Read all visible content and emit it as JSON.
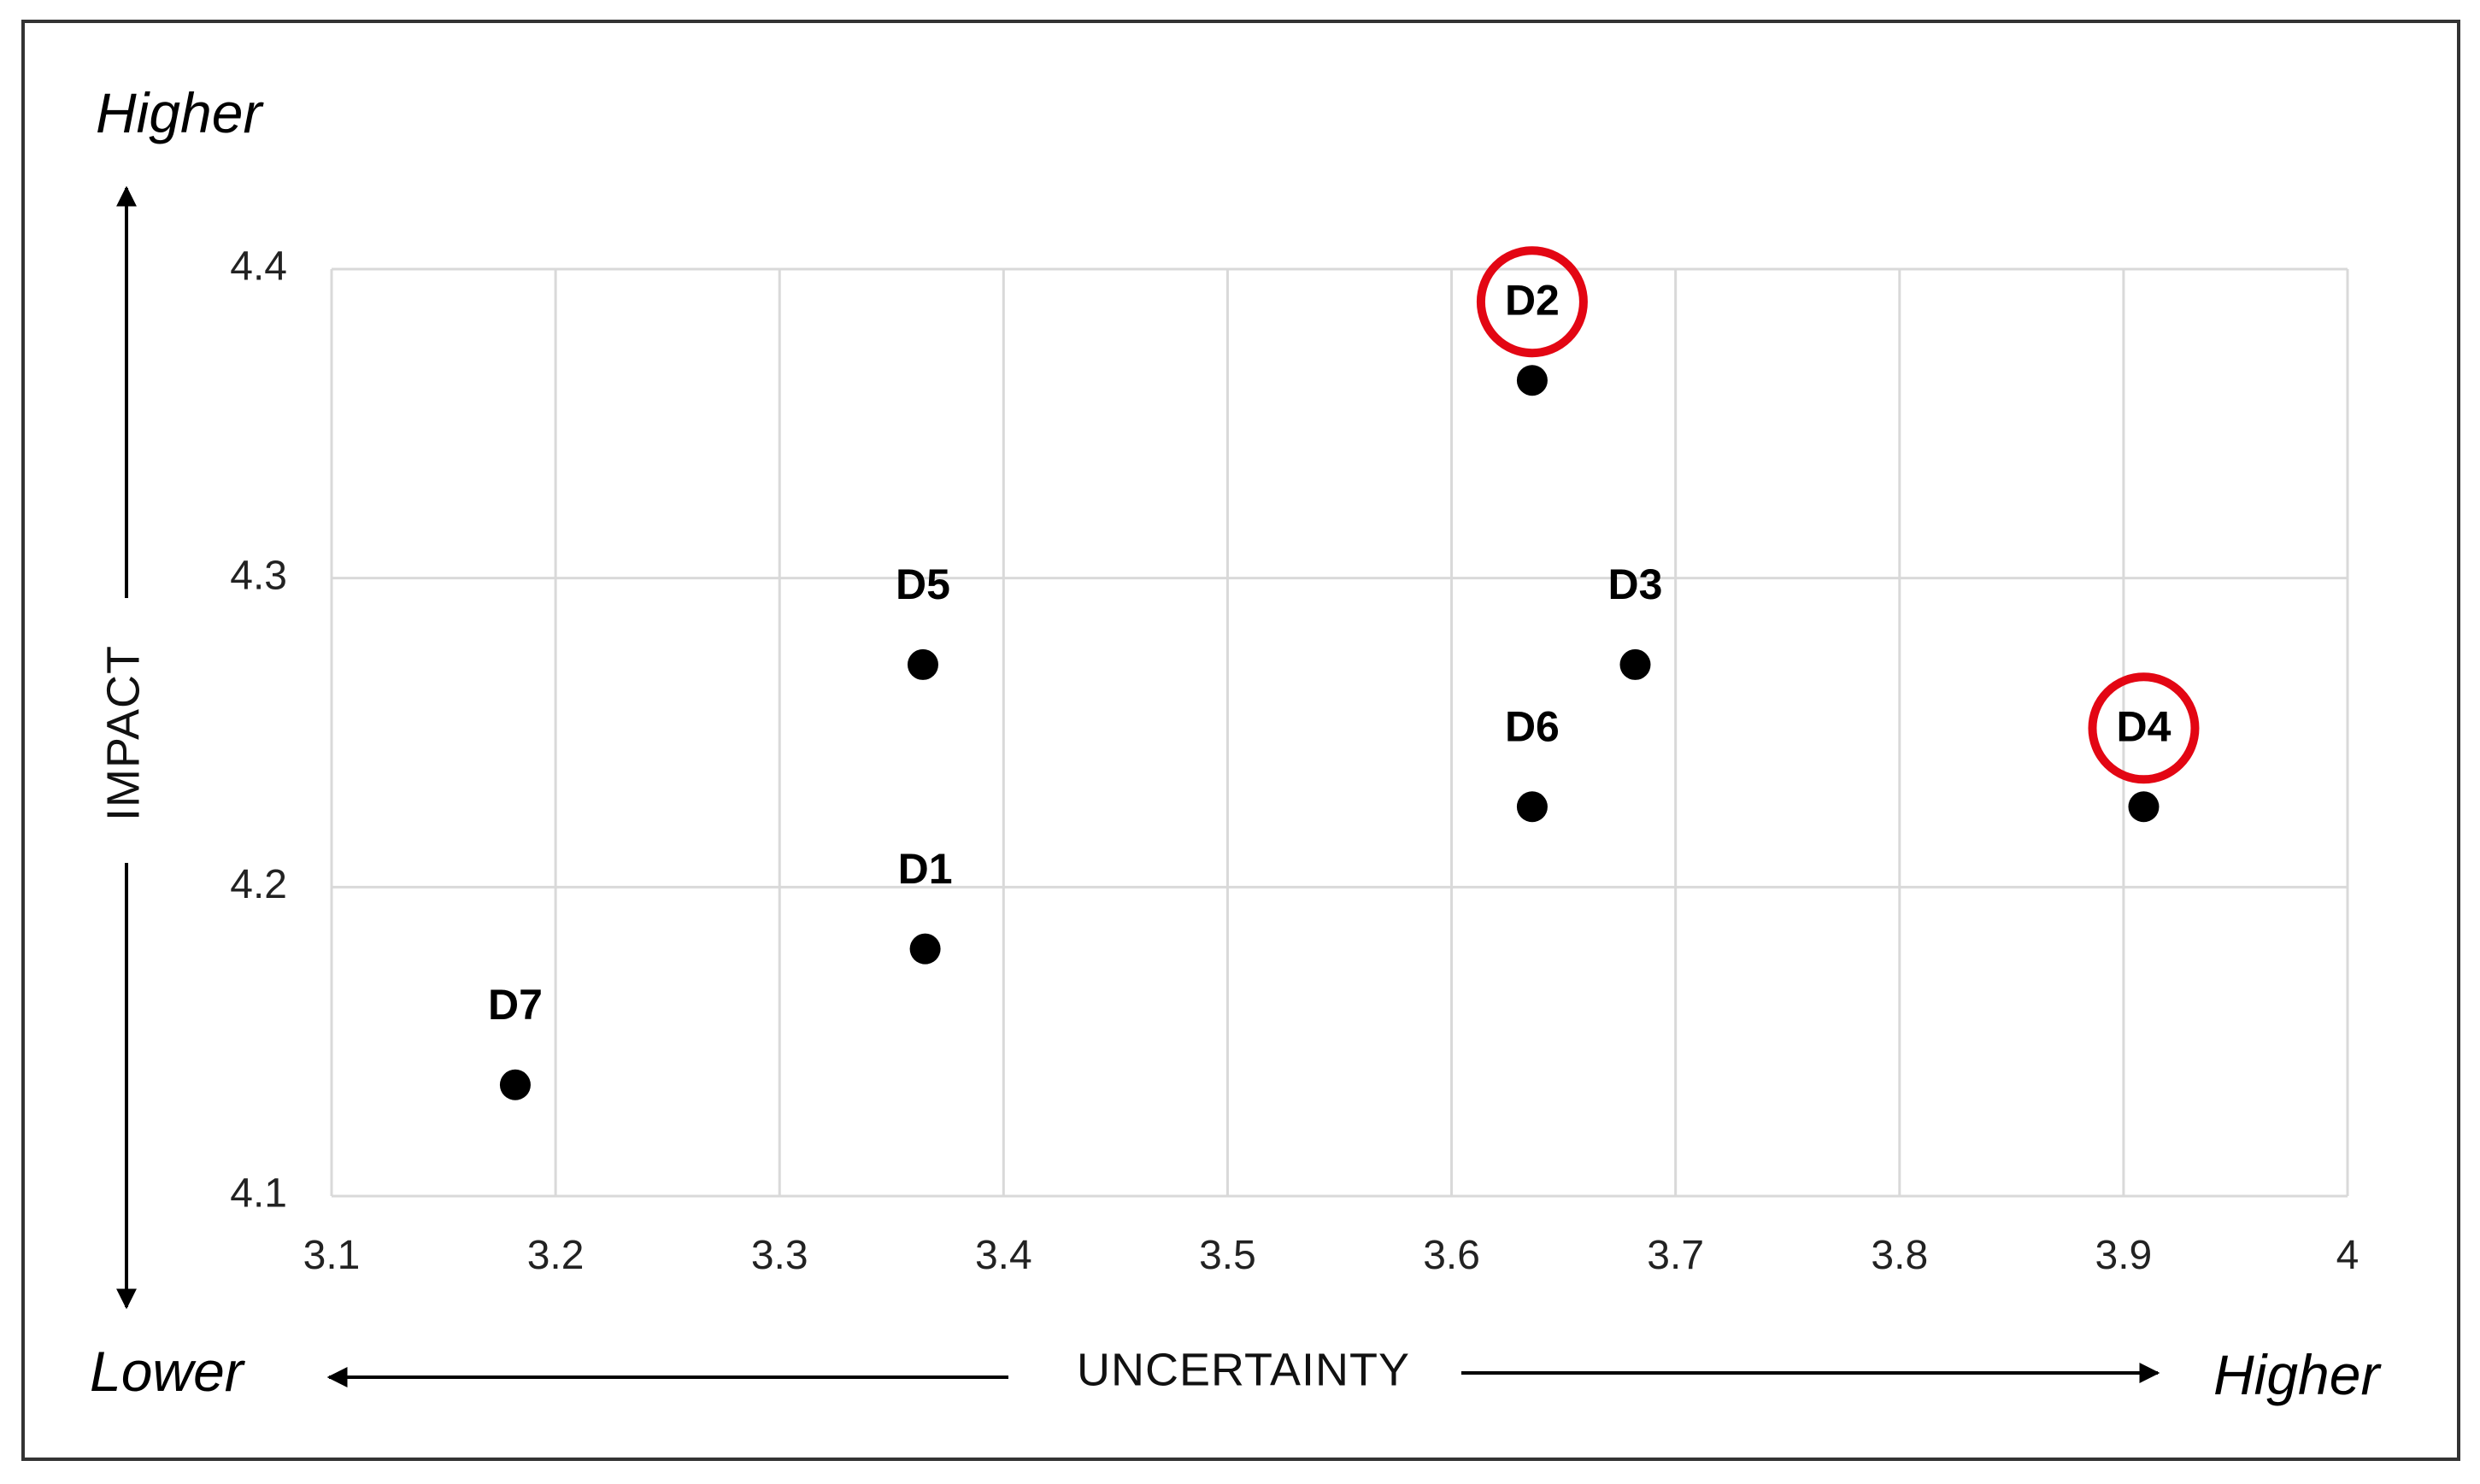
{
  "chart_data": {
    "type": "scatter",
    "xlabel": "UNCERTAINTY",
    "ylabel": "IMPACT",
    "xlim": [
      3.1,
      4.0
    ],
    "ylim": [
      4.1,
      4.4
    ],
    "x_ticks": [
      "3.1",
      "3.2",
      "3.3",
      "3.4",
      "3.5",
      "3.6",
      "3.7",
      "3.8",
      "3.9",
      "4"
    ],
    "y_ticks": [
      "4.1",
      "4.2",
      "4.3",
      "4.4"
    ],
    "grid": true,
    "direction_labels": {
      "y_high": "Higher",
      "x_low": "Lower",
      "x_high": "Higher"
    },
    "points": [
      {
        "label": "D1",
        "x": 3.365,
        "y": 4.18,
        "highlighted": false
      },
      {
        "label": "D2",
        "x": 3.636,
        "y": 4.364,
        "highlighted": true
      },
      {
        "label": "D3",
        "x": 3.682,
        "y": 4.272,
        "highlighted": false
      },
      {
        "label": "D4",
        "x": 3.909,
        "y": 4.226,
        "highlighted": true
      },
      {
        "label": "D5",
        "x": 3.364,
        "y": 4.272,
        "highlighted": false
      },
      {
        "label": "D6",
        "x": 3.636,
        "y": 4.226,
        "highlighted": false
      },
      {
        "label": "D7",
        "x": 3.182,
        "y": 4.136,
        "highlighted": false
      }
    ],
    "colors": {
      "point": "#000000",
      "highlight": "#e30613",
      "grid": "#d9d9d9"
    }
  }
}
